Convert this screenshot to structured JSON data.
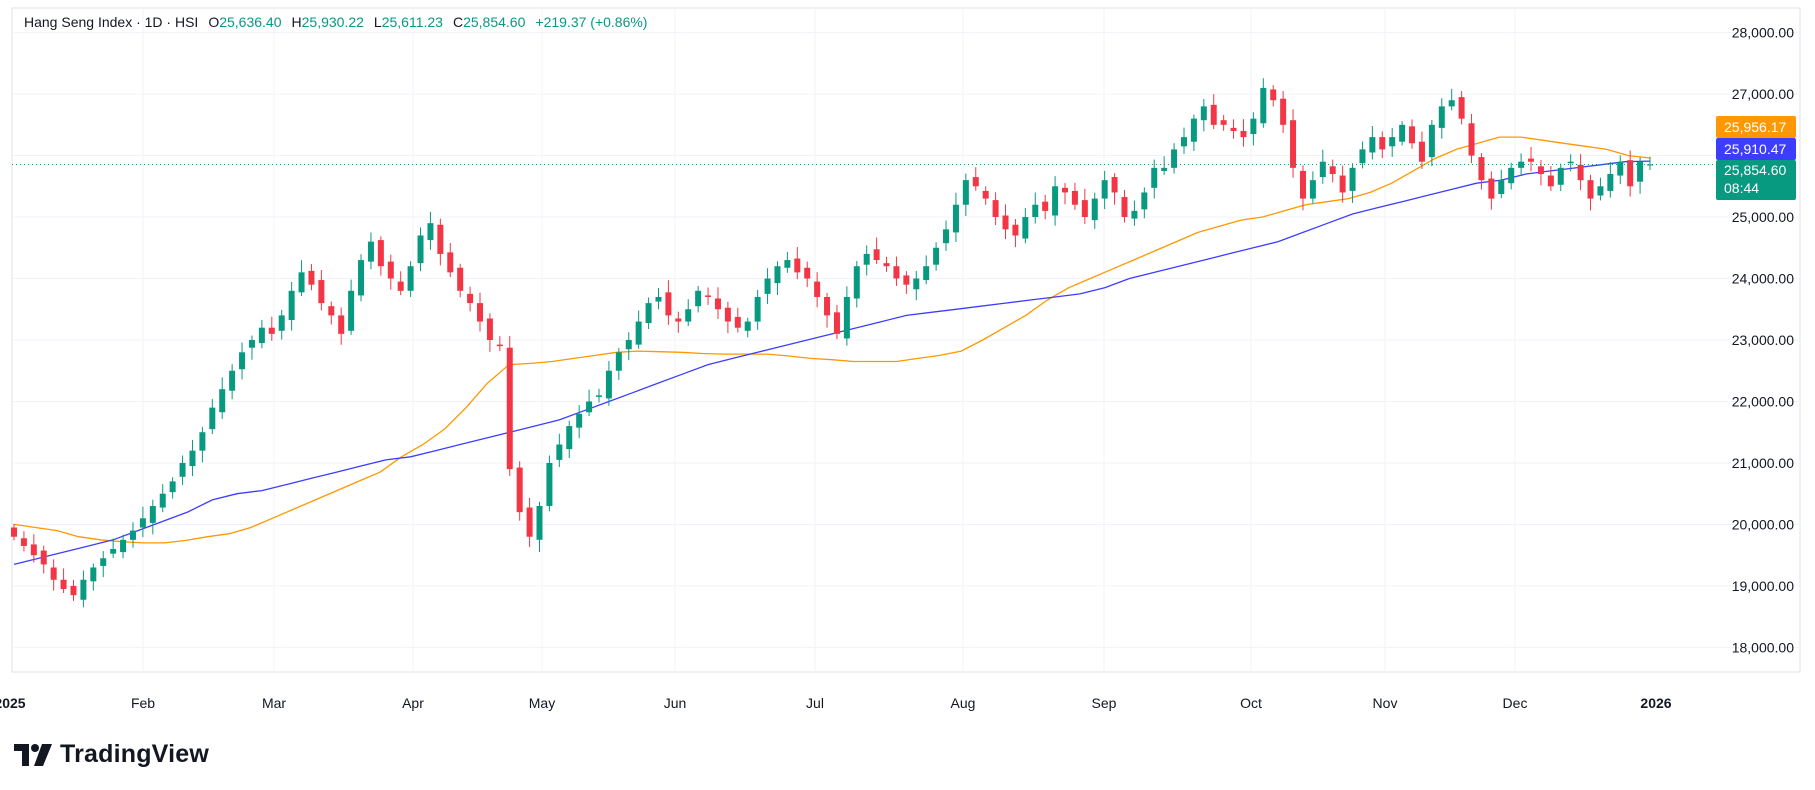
{
  "legend": {
    "title": "Hang Seng Index · 1D · HSI",
    "open_label": "O",
    "open": "25,636.40",
    "high_label": "H",
    "high": "25,930.22",
    "low_label": "L",
    "low": "25,611.23",
    "close_label": "C",
    "close": "25,854.60",
    "change": "+219.37 (+0.86%)"
  },
  "badges": {
    "ma_short": "25,956.17",
    "ma_long": "25,910.47",
    "price": "25,854.60",
    "countdown": "08:44"
  },
  "colors": {
    "up": "#089981",
    "down": "#f23645",
    "ma_short": "#ff9800",
    "ma_long": "#3d3dff",
    "price_line": "#089981"
  },
  "brand": {
    "name": "TradingView"
  },
  "chart_data": {
    "type": "candlestick",
    "title": "Hang Seng Index · 1D · HSI",
    "ylim": [
      17600,
      28400
    ],
    "y_ticks": [
      "18,000.00",
      "19,000.00",
      "20,000.00",
      "21,000.00",
      "22,000.00",
      "23,000.00",
      "24,000.00",
      "25,000.00",
      "26,000.00",
      "27,000.00",
      "28,000.00"
    ],
    "x_labels": [
      "2025",
      "Feb",
      "Mar",
      "Apr",
      "May",
      "Jun",
      "Jul",
      "Aug",
      "Sep",
      "Oct",
      "Nov",
      "Dec",
      "2026"
    ],
    "last_price": 25854.6,
    "series": [
      {
        "name": "Price (daily close, approx.)",
        "values": [
          19800,
          19650,
          19500,
          19350,
          19100,
          18950,
          18850,
          19100,
          19300,
          19450,
          19600,
          19750,
          19900,
          20100,
          20300,
          20500,
          20700,
          21000,
          21200,
          21500,
          21900,
          22200,
          22500,
          22800,
          23000,
          23200,
          23100,
          23400,
          23800,
          24100,
          23900,
          23600,
          23400,
          23100,
          23800,
          24300,
          24600,
          24200,
          24000,
          23800,
          24200,
          24700,
          24900,
          24400,
          24100,
          23800,
          23600,
          23300,
          23000,
          22900,
          20900,
          20200,
          19800,
          20300,
          21000,
          21300,
          21600,
          21800,
          22000,
          22100,
          22500,
          22800,
          23000,
          23300,
          23600,
          23700,
          23400,
          23300,
          23500,
          23800,
          23700,
          23500,
          23300,
          23200,
          23300,
          23700,
          24000,
          24200,
          24300,
          24100,
          24000,
          23700,
          23400,
          23100,
          23700,
          24200,
          24400,
          24300,
          24200,
          24000,
          23900,
          24000,
          24200,
          24500,
          24800,
          25200,
          25600,
          25500,
          25300,
          25000,
          24800,
          24700,
          25000,
          25200,
          25100,
          25500,
          25400,
          25200,
          25000,
          25300,
          25600,
          25400,
          25000,
          25100,
          25400,
          25800,
          25800,
          26100,
          26300,
          26600,
          26800,
          26500,
          26500,
          26400,
          26300,
          26600,
          27100,
          26900,
          26500,
          25800,
          25300,
          25600,
          25900,
          25700,
          25400,
          25800,
          26100,
          26300,
          26100,
          26300,
          26500,
          26200,
          25900,
          26500,
          26800,
          26900,
          26600,
          26000,
          25600,
          25300,
          25600,
          25800,
          25900,
          25900,
          25700,
          25500,
          25800,
          25900,
          25600,
          25300,
          25500,
          25700,
          25900,
          25500,
          25900,
          25855
        ]
      },
      {
        "name": "MA short (orange)",
        "values": [
          20000,
          19950,
          19900,
          19800,
          19750,
          19720,
          19700,
          19700,
          19740,
          19800,
          19850,
          19950,
          20100,
          20250,
          20400,
          20550,
          20700,
          20850,
          21100,
          21300,
          21550,
          21900,
          22300,
          22600,
          22620,
          22650,
          22700,
          22750,
          22800,
          22820,
          22810,
          22800,
          22780,
          22770,
          22770,
          22770,
          22740,
          22700,
          22680,
          22650,
          22650,
          22650,
          22700,
          22750,
          22820,
          23000,
          23200,
          23400,
          23650,
          23850,
          24000,
          24150,
          24300,
          24450,
          24600,
          24750,
          24850,
          24950,
          25000,
          25100,
          25200,
          25250,
          25300,
          25400,
          25550,
          25750,
          25950,
          26100,
          26200,
          26300,
          26300,
          26250,
          26200,
          26150,
          26100,
          26000,
          25960
        ]
      },
      {
        "name": "MA long (blue)",
        "values": [
          19350,
          19450,
          19550,
          19650,
          19750,
          19900,
          20050,
          20200,
          20400,
          20500,
          20550,
          20650,
          20750,
          20850,
          20950,
          21050,
          21100,
          21200,
          21300,
          21400,
          21500,
          21600,
          21700,
          21850,
          22000,
          22150,
          22300,
          22450,
          22600,
          22700,
          22800,
          22900,
          23000,
          23100,
          23200,
          23300,
          23400,
          23450,
          23500,
          23550,
          23600,
          23650,
          23700,
          23750,
          23850,
          24000,
          24100,
          24200,
          24300,
          24400,
          24500,
          24600,
          24750,
          24900,
          25050,
          25150,
          25250,
          25350,
          25450,
          25550,
          25600,
          25700,
          25750,
          25800,
          25850,
          25900,
          25910
        ]
      }
    ]
  }
}
